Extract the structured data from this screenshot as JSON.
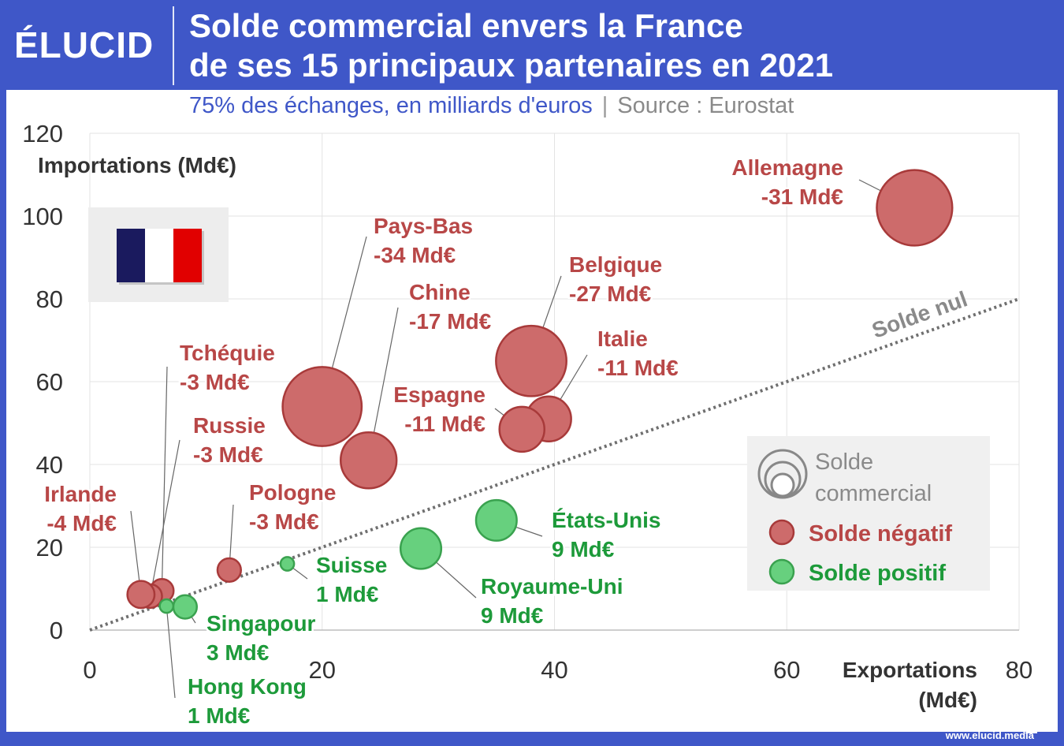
{
  "brand": {
    "logo_text": "ÉLUCID",
    "website": "www.elucid.media"
  },
  "header": {
    "title_line1": "Solde commercial envers la France",
    "title_line2": "de ses 15 principaux partenaires en 2021",
    "subtitle": "75% des échanges, en milliards d'euros",
    "separator": "|",
    "source": "Source : Eurostat"
  },
  "colors": {
    "brand_blue": "#3f57c8",
    "negative_fill": "#cd6b6b",
    "negative_stroke": "#a83a3a",
    "negative_text": "#b84747",
    "positive_fill": "#67d07e",
    "positive_stroke": "#3aa24f",
    "positive_text": "#1d9a3a",
    "flag_blue": "#1a1a5e",
    "flag_white": "#ffffff",
    "flag_red": "#e10000"
  },
  "chart_data": {
    "type": "scatter",
    "xlabel_line1": "Exportations",
    "xlabel_line2": "(Md€)",
    "ylabel": "Importations (Md€)",
    "xlim": [
      0,
      80
    ],
    "ylim": [
      0,
      120
    ],
    "x_ticks": [
      0,
      20,
      40,
      60,
      80
    ],
    "y_ticks": [
      0,
      20,
      40,
      60,
      80,
      100,
      120
    ],
    "grid": true,
    "reference_line_label": "Solde nul",
    "legend": {
      "placement": "bottom-right",
      "size_title_line1": "Solde",
      "size_title_line2": "commercial",
      "negative_label": "Solde négatif",
      "positive_label": "Solde positif"
    },
    "points": [
      {
        "name": "Allemagne",
        "balance_label": "-31 Md€",
        "balance": -31,
        "x": 71,
        "y": 102,
        "sign": "negative"
      },
      {
        "name": "Pays-Bas",
        "balance_label": "-34 Md€",
        "balance": -34,
        "x": 20,
        "y": 54,
        "sign": "negative"
      },
      {
        "name": "Belgique",
        "balance_label": "-27 Md€",
        "balance": -27,
        "x": 38,
        "y": 65,
        "sign": "negative"
      },
      {
        "name": "Chine",
        "balance_label": "-17 Md€",
        "balance": -17,
        "x": 24,
        "y": 41,
        "sign": "negative"
      },
      {
        "name": "Italie",
        "balance_label": "-11 Md€",
        "balance": -11,
        "x": 39.5,
        "y": 51,
        "sign": "negative"
      },
      {
        "name": "Espagne",
        "balance_label": "-11 Md€",
        "balance": -11,
        "x": 37.2,
        "y": 48.5,
        "sign": "negative"
      },
      {
        "name": "Tchéquie",
        "balance_label": "-3 Md€",
        "balance": -3,
        "x": 6.2,
        "y": 9.5,
        "sign": "negative"
      },
      {
        "name": "Russie",
        "balance_label": "-3 Md€",
        "balance": -3,
        "x": 5.2,
        "y": 8.2,
        "sign": "negative"
      },
      {
        "name": "Irlande",
        "balance_label": "-4 Md€",
        "balance": -4,
        "x": 4.4,
        "y": 8.6,
        "sign": "negative"
      },
      {
        "name": "Pologne",
        "balance_label": "-3 Md€",
        "balance": -3,
        "x": 12,
        "y": 14.5,
        "sign": "negative"
      },
      {
        "name": "États-Unis",
        "balance_label": "9 Md€",
        "balance": 9,
        "x": 35,
        "y": 26.5,
        "sign": "positive"
      },
      {
        "name": "Royaume-Uni",
        "balance_label": "9 Md€",
        "balance": 9,
        "x": 28.5,
        "y": 19.7,
        "sign": "positive"
      },
      {
        "name": "Suisse",
        "balance_label": "1 Md€",
        "balance": 1,
        "x": 17,
        "y": 16,
        "sign": "positive"
      },
      {
        "name": "Singapour",
        "balance_label": "3 Md€",
        "balance": 3,
        "x": 8.2,
        "y": 5.6,
        "sign": "positive"
      },
      {
        "name": "Hong Kong",
        "balance_label": "1 Md€",
        "balance": 1,
        "x": 6.6,
        "y": 5.8,
        "sign": "positive"
      }
    ]
  }
}
